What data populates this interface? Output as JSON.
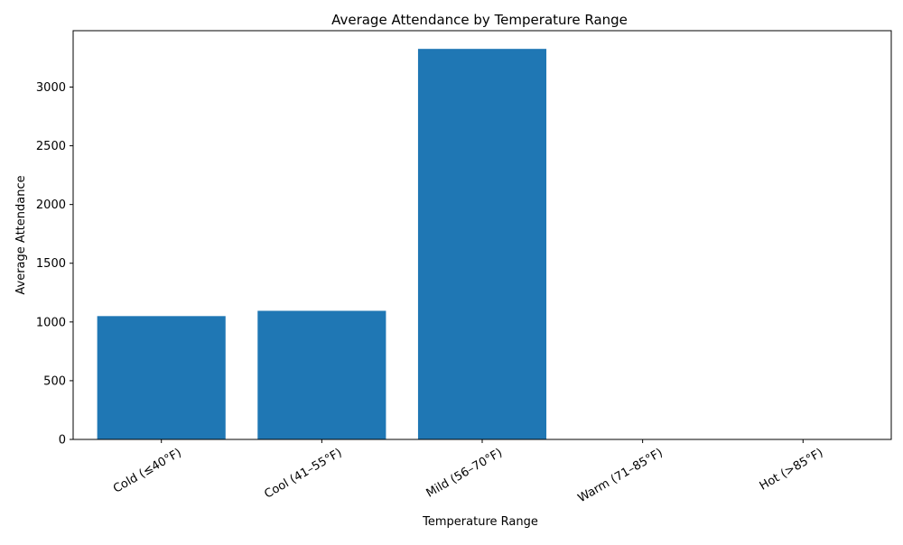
{
  "chart_data": {
    "type": "bar",
    "title": "Average Attendance by Temperature Range",
    "xlabel": "Temperature Range",
    "ylabel": "Average Attendance",
    "categories": [
      "Cold (≤40°F)",
      "Cool (41–55°F)",
      "Mild (56–70°F)",
      "Warm (71–85°F)",
      "Hot (>85°F)"
    ],
    "values": [
      1050,
      1095,
      3325,
      0,
      0
    ],
    "ylim": [
      0,
      3480
    ],
    "yticks": [
      0,
      500,
      1000,
      1500,
      2000,
      2500,
      3000
    ],
    "bar_color": "#1f77b4",
    "grid": false,
    "legend": "none",
    "xtick_rotation_deg": 30
  }
}
